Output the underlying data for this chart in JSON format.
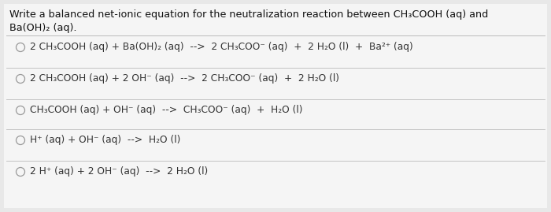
{
  "background_color": "#e8e8e8",
  "panel_color": "#f5f5f5",
  "title_line1": "Write a balanced net-ionic equation for the neutralization reaction between CH₃COOH (aq) and",
  "title_line2": "Ba(OH)₂ (aq).",
  "options": [
    "2 CH₃COOH (aq) + Ba(OH)₂ (aq)  -->  2 CH₃COO⁻ (aq)  +  2 H₂O (l)  +  Ba²⁺ (aq)",
    "2 CH₃COOH (aq) + 2 OH⁻ (aq)  -->  2 CH₃COO⁻ (aq)  +  2 H₂O (l)",
    "CH₃COOH (aq) + OH⁻ (aq)  -->  CH₃COO⁻ (aq)  +  H₂O (l)",
    "H⁺ (aq) + OH⁻ (aq)  -->  H₂O (l)",
    "2 H⁺ (aq) + 2 OH⁻ (aq)  -->  2 H₂O (l)"
  ],
  "title_fontsize": 9.2,
  "option_fontsize": 8.8,
  "divider_color": "#bbbbbb",
  "circle_color": "#999999",
  "text_color": "#333333",
  "title_color": "#111111"
}
